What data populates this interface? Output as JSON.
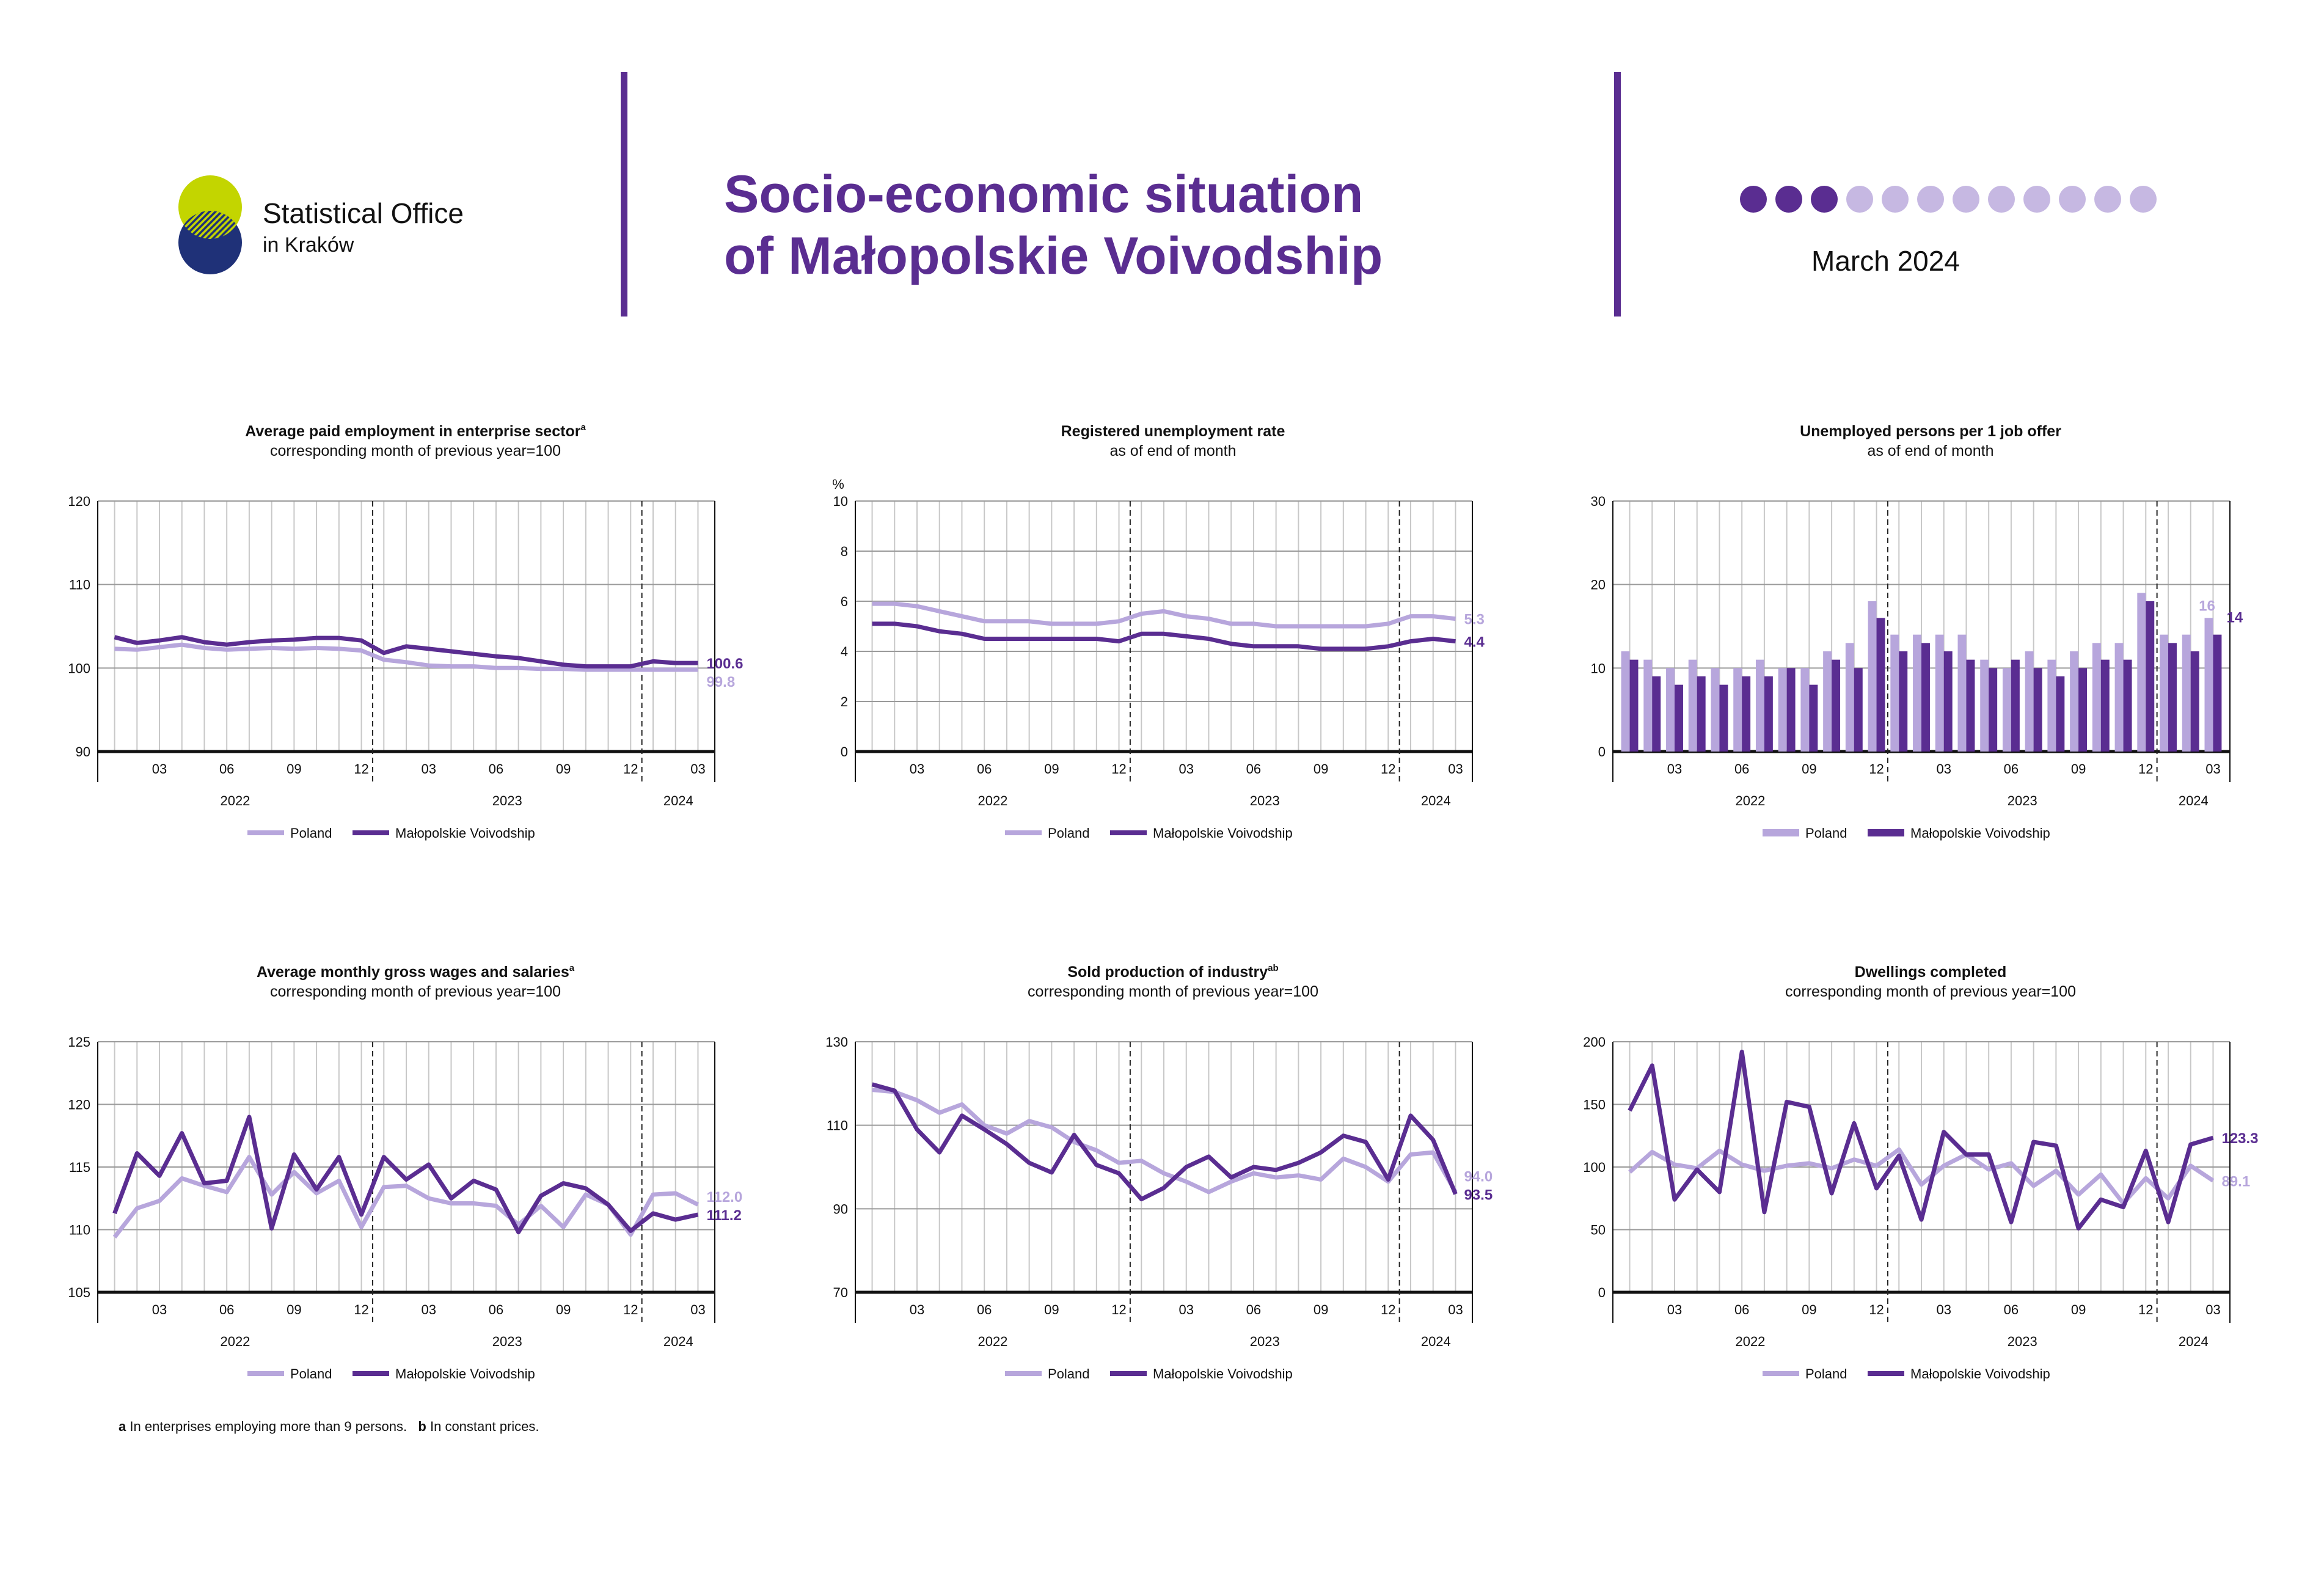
{
  "header": {
    "org_name": "Statistical Office",
    "org_sub": "in Kraków",
    "title_line1": "Socio-economic situation",
    "title_line2": "of Małopolskie Voivodship",
    "date": "March 2024",
    "progress_dots": {
      "filled": 3,
      "total": 12
    }
  },
  "colors": {
    "poland": "#b7a6dc",
    "malopolskie": "#5a2d91",
    "accent": "#5a2d91",
    "logo_green": "#c3d500",
    "logo_navy": "#1f3178"
  },
  "legend": {
    "poland": "Poland",
    "malopolskie": "Małopolskie Voivodship"
  },
  "x_axis": {
    "month_ticks": [
      "03",
      "06",
      "09",
      "12",
      "03",
      "06",
      "09",
      "12",
      "03"
    ],
    "years": [
      "2022",
      "2023",
      "2024"
    ]
  },
  "footnote": {
    "a": "a",
    "a_text": "In enterprises employing more than 9 persons.",
    "b": "b",
    "b_text": "In constant prices."
  },
  "chart_data": [
    {
      "type": "line",
      "title": "Average paid employment in enterprise sector",
      "title_sup": "a",
      "subtitle": "corresponding month of previous year=100",
      "unit": "",
      "ylim": [
        90,
        120
      ],
      "yticks": [
        90,
        100,
        110,
        120
      ],
      "x": [
        "2022-01",
        "2022-02",
        "2022-03",
        "2022-04",
        "2022-05",
        "2022-06",
        "2022-07",
        "2022-08",
        "2022-09",
        "2022-10",
        "2022-11",
        "2022-12",
        "2023-01",
        "2023-02",
        "2023-03",
        "2023-04",
        "2023-05",
        "2023-06",
        "2023-07",
        "2023-08",
        "2023-09",
        "2023-10",
        "2023-11",
        "2023-12",
        "2024-01",
        "2024-02",
        "2024-03"
      ],
      "series": [
        {
          "name": "Poland",
          "values": [
            102.3,
            102.2,
            102.5,
            102.8,
            102.4,
            102.2,
            102.3,
            102.4,
            102.3,
            102.4,
            102.3,
            102.1,
            101.0,
            100.7,
            100.3,
            100.2,
            100.2,
            100.0,
            100.0,
            99.9,
            99.9,
            99.8,
            99.8,
            99.8,
            99.8,
            99.8,
            99.8
          ]
        },
        {
          "name": "Małopolskie Voivodship",
          "values": [
            103.7,
            103.0,
            103.3,
            103.7,
            103.1,
            102.8,
            103.1,
            103.3,
            103.4,
            103.6,
            103.6,
            103.3,
            101.8,
            102.6,
            102.3,
            102.0,
            101.7,
            101.4,
            101.2,
            100.8,
            100.4,
            100.2,
            100.2,
            100.2,
            100.8,
            100.6,
            100.6
          ]
        }
      ],
      "end_labels": {
        "malopolskie": "100.6",
        "poland": "99.8"
      }
    },
    {
      "type": "line",
      "title": "Registered unemployment rate",
      "title_sup": "",
      "subtitle": "as of end of month",
      "unit": "%",
      "ylim": [
        0,
        10
      ],
      "yticks": [
        0,
        2,
        4,
        6,
        8,
        10
      ],
      "x": [
        "2022-01",
        "2022-02",
        "2022-03",
        "2022-04",
        "2022-05",
        "2022-06",
        "2022-07",
        "2022-08",
        "2022-09",
        "2022-10",
        "2022-11",
        "2022-12",
        "2023-01",
        "2023-02",
        "2023-03",
        "2023-04",
        "2023-05",
        "2023-06",
        "2023-07",
        "2023-08",
        "2023-09",
        "2023-10",
        "2023-11",
        "2023-12",
        "2024-01",
        "2024-02",
        "2024-03"
      ],
      "series": [
        {
          "name": "Poland",
          "values": [
            5.9,
            5.9,
            5.8,
            5.6,
            5.4,
            5.2,
            5.2,
            5.2,
            5.1,
            5.1,
            5.1,
            5.2,
            5.5,
            5.6,
            5.4,
            5.3,
            5.1,
            5.1,
            5.0,
            5.0,
            5.0,
            5.0,
            5.0,
            5.1,
            5.4,
            5.4,
            5.3
          ]
        },
        {
          "name": "Małopolskie Voivodship",
          "values": [
            5.1,
            5.1,
            5.0,
            4.8,
            4.7,
            4.5,
            4.5,
            4.5,
            4.5,
            4.5,
            4.5,
            4.4,
            4.7,
            4.7,
            4.6,
            4.5,
            4.3,
            4.2,
            4.2,
            4.2,
            4.1,
            4.1,
            4.1,
            4.2,
            4.4,
            4.5,
            4.4
          ]
        }
      ],
      "end_labels": {
        "poland": "5.3",
        "malopolskie": "4.4"
      }
    },
    {
      "type": "bar",
      "title": "Unemployed persons per 1 job offer",
      "title_sup": "",
      "subtitle": "as of end of month",
      "unit": "",
      "ylim": [
        0,
        30
      ],
      "yticks": [
        0,
        10,
        20,
        30
      ],
      "x": [
        "2022-01",
        "2022-02",
        "2022-03",
        "2022-04",
        "2022-05",
        "2022-06",
        "2022-07",
        "2022-08",
        "2022-09",
        "2022-10",
        "2022-11",
        "2022-12",
        "2023-01",
        "2023-02",
        "2023-03",
        "2023-04",
        "2023-05",
        "2023-06",
        "2023-07",
        "2023-08",
        "2023-09",
        "2023-10",
        "2023-11",
        "2023-12",
        "2024-01",
        "2024-02",
        "2024-03"
      ],
      "series": [
        {
          "name": "Poland",
          "values": [
            12,
            11,
            10,
            11,
            10,
            10,
            11,
            10,
            10,
            12,
            13,
            18,
            14,
            14,
            14,
            14,
            11,
            10,
            12,
            11,
            12,
            13,
            13,
            19,
            14,
            14,
            16
          ]
        },
        {
          "name": "Małopolskie Voivodship",
          "values": [
            11,
            9,
            8,
            9,
            8,
            9,
            9,
            10,
            8,
            11,
            10,
            16,
            12,
            13,
            12,
            11,
            10,
            11,
            10,
            9,
            10,
            11,
            11,
            18,
            13,
            12,
            14
          ]
        }
      ],
      "end_labels": {
        "poland": "16",
        "malopolskie": "14"
      }
    },
    {
      "type": "line",
      "title": "Average monthly gross wages and salaries",
      "title_sup": "a",
      "subtitle": "corresponding month of previous year=100",
      "unit": "",
      "ylim": [
        105,
        125
      ],
      "yticks": [
        105,
        110,
        115,
        120,
        125
      ],
      "x": [
        "2022-01",
        "2022-02",
        "2022-03",
        "2022-04",
        "2022-05",
        "2022-06",
        "2022-07",
        "2022-08",
        "2022-09",
        "2022-10",
        "2022-11",
        "2022-12",
        "2023-01",
        "2023-02",
        "2023-03",
        "2023-04",
        "2023-05",
        "2023-06",
        "2023-07",
        "2023-08",
        "2023-09",
        "2023-10",
        "2023-11",
        "2023-12",
        "2024-01",
        "2024-02",
        "2024-03"
      ],
      "series": [
        {
          "name": "Poland",
          "values": [
            109.4,
            111.7,
            112.3,
            114.1,
            113.5,
            113.0,
            115.8,
            112.8,
            114.6,
            112.9,
            113.9,
            110.2,
            113.4,
            113.5,
            112.5,
            112.1,
            112.1,
            111.9,
            110.4,
            111.9,
            110.2,
            112.8,
            112.0,
            109.6,
            112.8,
            112.9,
            112.0
          ]
        },
        {
          "name": "Małopolskie Voivodship",
          "values": [
            111.3,
            116.1,
            114.3,
            117.7,
            113.7,
            113.9,
            119.0,
            110.1,
            116.0,
            113.2,
            115.8,
            111.2,
            115.8,
            114.0,
            115.2,
            112.5,
            113.9,
            113.2,
            109.8,
            112.7,
            113.7,
            113.3,
            112.0,
            109.9,
            111.3,
            110.8,
            111.2
          ]
        }
      ],
      "end_labels": {
        "poland": "112.0",
        "malopolskie": "111.2"
      }
    },
    {
      "type": "line",
      "title": "Sold production of industry",
      "title_sup": "ab",
      "subtitle": "corresponding month of previous year=100",
      "unit": "",
      "ylim": [
        70,
        130
      ],
      "yticks": [
        70,
        90,
        110,
        130
      ],
      "x": [
        "2022-01",
        "2022-02",
        "2022-03",
        "2022-04",
        "2022-05",
        "2022-06",
        "2022-07",
        "2022-08",
        "2022-09",
        "2022-10",
        "2022-11",
        "2022-12",
        "2023-01",
        "2023-02",
        "2023-03",
        "2023-04",
        "2023-05",
        "2023-06",
        "2023-07",
        "2023-08",
        "2023-09",
        "2023-10",
        "2023-11",
        "2023-12",
        "2024-01",
        "2024-02",
        "2024-03"
      ],
      "series": [
        {
          "name": "Poland",
          "values": [
            118.5,
            118.0,
            116.0,
            113.0,
            115.0,
            110.0,
            108.0,
            111.0,
            109.5,
            106.0,
            104.0,
            101.0,
            101.5,
            98.5,
            96.5,
            94.0,
            96.5,
            98.5,
            97.5,
            98.0,
            97.0,
            102.0,
            100.0,
            96.5,
            103.0,
            103.5,
            94.0
          ]
        },
        {
          "name": "Małopolskie Voivodship",
          "values": [
            119.8,
            118.3,
            109.0,
            103.5,
            112.3,
            109.0,
            105.5,
            101.0,
            98.7,
            107.7,
            100.5,
            98.5,
            92.3,
            95.0,
            100.0,
            102.5,
            97.5,
            100.0,
            99.3,
            101.0,
            103.5,
            107.5,
            106.0,
            97.0,
            112.3,
            106.5,
            93.5
          ]
        }
      ],
      "end_labels": {
        "poland": "94.0",
        "malopolskie": "93.5"
      }
    },
    {
      "type": "line",
      "title": "Dwellings completed",
      "title_sup": "",
      "subtitle": "corresponding month of previous year=100",
      "unit": "",
      "ylim": [
        0,
        200
      ],
      "yticks": [
        0,
        50,
        100,
        150,
        200
      ],
      "x": [
        "2022-01",
        "2022-02",
        "2022-03",
        "2022-04",
        "2022-05",
        "2022-06",
        "2022-07",
        "2022-08",
        "2022-09",
        "2022-10",
        "2022-11",
        "2022-12",
        "2023-01",
        "2023-02",
        "2023-03",
        "2023-04",
        "2023-05",
        "2023-06",
        "2023-07",
        "2023-08",
        "2023-09",
        "2023-10",
        "2023-11",
        "2023-12",
        "2024-01",
        "2024-02",
        "2024-03"
      ],
      "series": [
        {
          "name": "Poland",
          "values": [
            96,
            112,
            102,
            99,
            113,
            102,
            97,
            101,
            103,
            99,
            106,
            101,
            114,
            86,
            101,
            110,
            98,
            103,
            85,
            97,
            78,
            94,
            71,
            91,
            75,
            101,
            89.1
          ]
        },
        {
          "name": "Małopolskie Voivodship",
          "values": [
            145,
            181,
            74,
            98,
            80,
            192,
            64,
            152,
            148,
            79,
            135,
            83,
            109,
            58,
            128,
            110,
            110,
            56,
            120,
            117,
            51,
            74,
            68,
            113,
            56,
            118,
            123.3
          ]
        }
      ],
      "end_labels": {
        "malopolskie": "123.3",
        "poland": "89.1"
      }
    }
  ]
}
